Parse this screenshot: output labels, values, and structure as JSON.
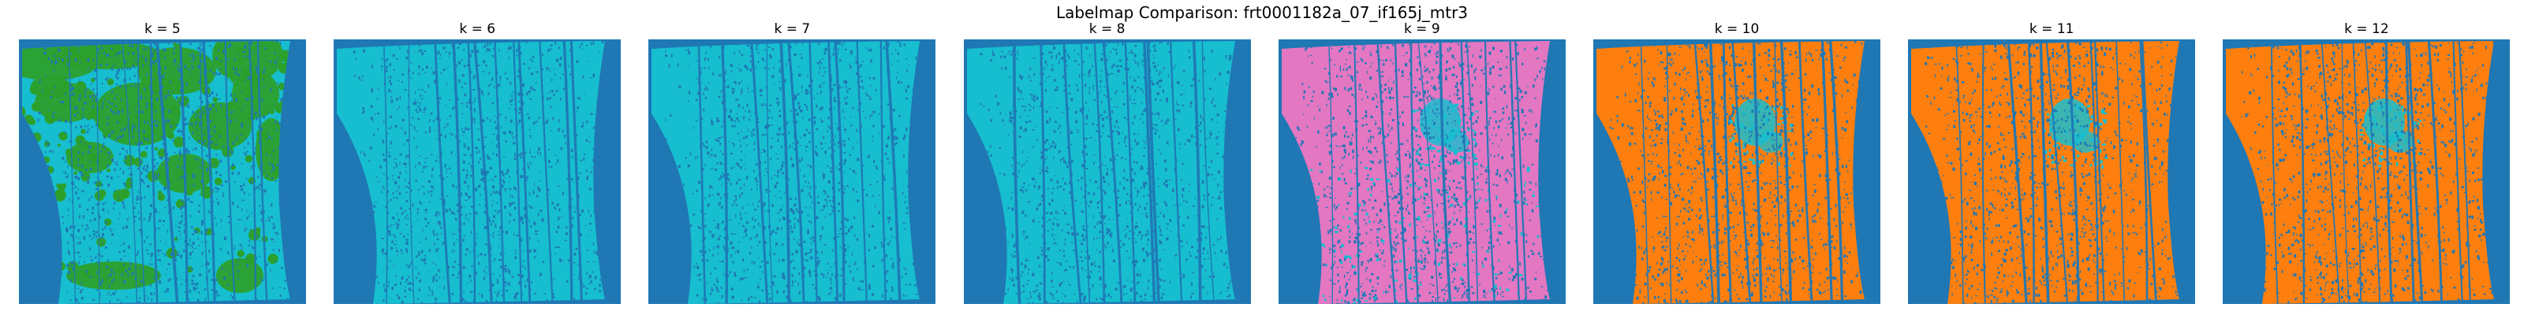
{
  "figure": {
    "title": "Labelmap Comparison: frt0001182a_07_if165j_mtr3",
    "panels": [
      {
        "label": "k = 5",
        "fill": "#17becf",
        "overlay": "#2ca02c",
        "speckle": "#1f77b4",
        "overlay_type": "green-blobs"
      },
      {
        "label": "k = 6",
        "fill": "#17becf",
        "overlay": null,
        "speckle": "#1f77b4",
        "overlay_type": "none"
      },
      {
        "label": "k = 7",
        "fill": "#17becf",
        "overlay": null,
        "speckle": "#1f77b4",
        "overlay_type": "none"
      },
      {
        "label": "k = 8",
        "fill": "#17becf",
        "overlay": null,
        "speckle": "#1f77b4",
        "overlay_type": "none"
      },
      {
        "label": "k = 9",
        "fill": "#e377c2",
        "overlay": "#17becf",
        "speckle": "#1f77b4",
        "overlay_type": "cyan-patch"
      },
      {
        "label": "k = 10",
        "fill": "#ff7f0e",
        "overlay": "#17becf",
        "speckle": "#1f77b4",
        "overlay_type": "cyan-patch"
      },
      {
        "label": "k = 11",
        "fill": "#ff7f0e",
        "overlay": "#17becf",
        "speckle": "#1f77b4",
        "overlay_type": "cyan-patch"
      },
      {
        "label": "k = 12",
        "fill": "#ff7f0e",
        "overlay": "#17becf",
        "speckle": "#1f77b4",
        "overlay_type": "cyan-patch"
      }
    ],
    "background_color": "#1f77b4"
  }
}
